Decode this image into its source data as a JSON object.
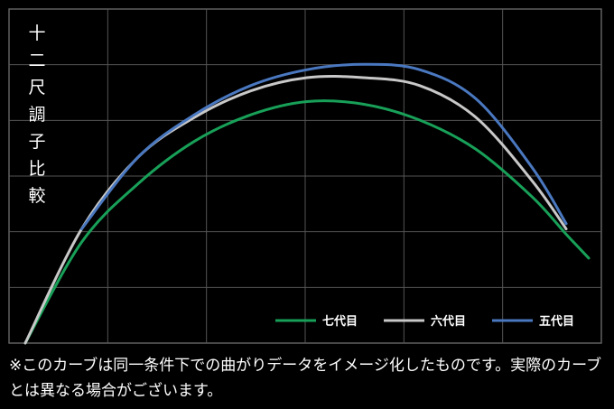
{
  "chart_data": {
    "type": "line",
    "title": "十二尺調子比較",
    "xlabel": "",
    "ylabel": "",
    "grid": true,
    "legend_position": "bottom-right",
    "series": [
      {
        "name": "七代目",
        "color": "#18a058",
        "x": [
          0.0,
          0.1,
          0.2,
          0.3,
          0.4,
          0.5,
          0.6,
          0.7,
          0.8,
          0.9,
          0.96,
          1.0
        ],
        "y": [
          0.0,
          0.38,
          0.6,
          0.76,
          0.86,
          0.91,
          0.9,
          0.84,
          0.73,
          0.55,
          0.41,
          0.32
        ]
      },
      {
        "name": "六代目",
        "color": "#c8c8c8",
        "x": [
          0.0,
          0.1,
          0.2,
          0.3,
          0.4,
          0.5,
          0.6,
          0.7,
          0.8,
          0.9,
          0.96
        ],
        "y": [
          0.0,
          0.43,
          0.7,
          0.85,
          0.95,
          1.0,
          1.0,
          0.97,
          0.85,
          0.61,
          0.43
        ]
      },
      {
        "name": "五代目",
        "color": "#4a78c0",
        "x": [
          0.1,
          0.2,
          0.3,
          0.4,
          0.5,
          0.6,
          0.7,
          0.8,
          0.9,
          0.96
        ],
        "y": [
          0.43,
          0.7,
          0.86,
          0.97,
          1.03,
          1.05,
          1.03,
          0.92,
          0.66,
          0.45
        ]
      }
    ]
  },
  "footnote": "※このカーブは同一条件下での曲がりデータをイメージ化したものです。実際のカーブとは異なる場合がございます。"
}
